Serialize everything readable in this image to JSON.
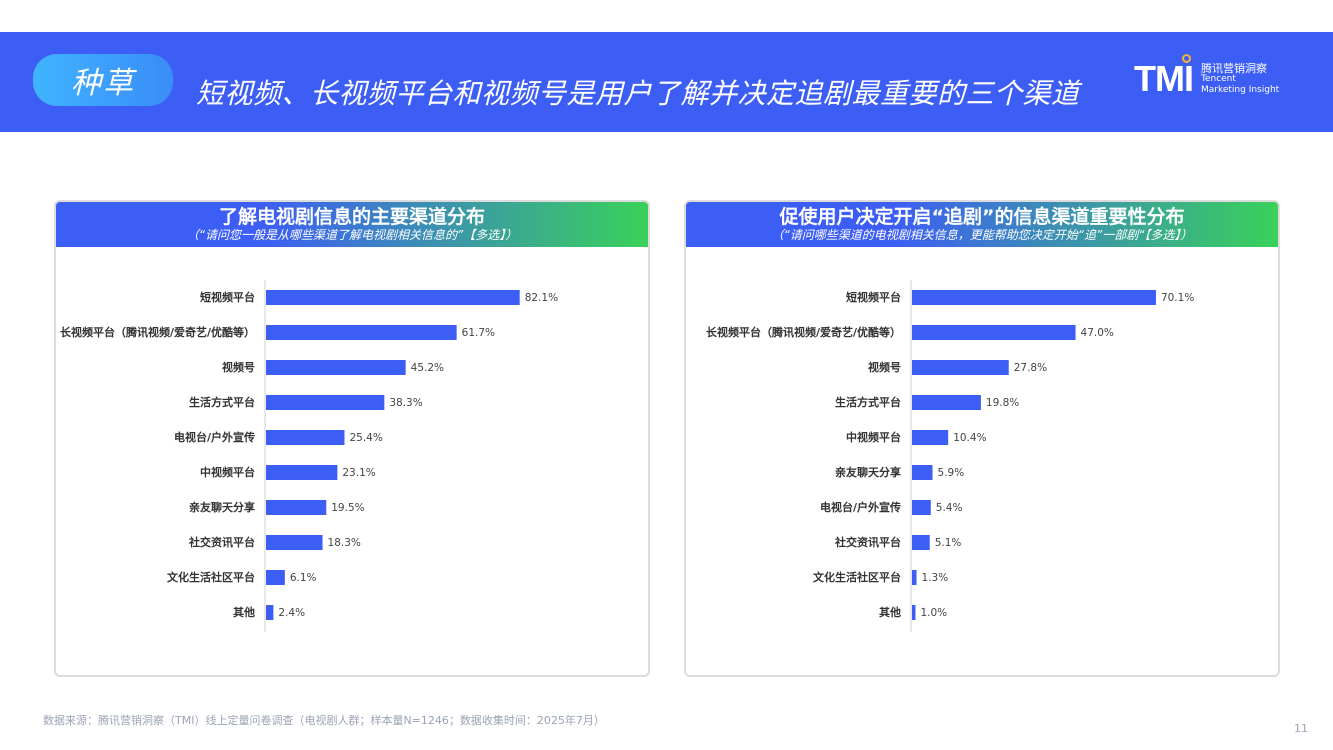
{
  "header": {
    "tag": "种草",
    "title": "短视频、长视频平台和视频号是用户了解并决定追剧最重要的三个渠道",
    "logo": {
      "mark": "TMI",
      "cn": "腾讯营销洞察",
      "en1": "Tencent",
      "en2": "Marketing Insight"
    }
  },
  "colors": {
    "banner": "#3d5ef5",
    "bar": "#3d5ef5",
    "header_gradient_end": "#3ad15a"
  },
  "chart_data": [
    {
      "type": "bar",
      "orientation": "horizontal",
      "title": "了解电视剧信息的主要渠道分布",
      "subtitle": "（“请问您一般是从哪些渠道了解电视剧相关信息的”【多选】）",
      "categories": [
        "短视频平台",
        "长视频平台（腾讯视频/爱奇艺/优酷等）",
        "视频号",
        "生活方式平台",
        "电视台/户外宣传",
        "中视频平台",
        "亲友聊天分享",
        "社交资讯平台",
        "文化生活社区平台",
        "其他"
      ],
      "values": [
        82.1,
        61.7,
        45.2,
        38.3,
        25.4,
        23.1,
        19.5,
        18.3,
        6.1,
        2.4
      ],
      "labels": [
        "82.1%",
        "61.7%",
        "45.2%",
        "38.3%",
        "25.4%",
        "23.1%",
        "19.5%",
        "18.3%",
        "6.1%",
        "2.4%"
      ],
      "xlim": [
        0,
        100
      ],
      "grid": false
    },
    {
      "type": "bar",
      "orientation": "horizontal",
      "title": "促使用户决定开启“追剧”的信息渠道重要性分布",
      "subtitle": "（“请问哪些渠道的电视剧相关信息，更能帮助您决定开始“追”一部剧“【多选】）",
      "categories": [
        "短视频平台",
        "长视频平台（腾讯视频/爱奇艺/优酷等）",
        "视频号",
        "生活方式平台",
        "中视频平台",
        "亲友聊天分享",
        "电视台/户外宣传",
        "社交资讯平台",
        "文化生活社区平台",
        "其他"
      ],
      "values": [
        70.1,
        47.0,
        27.8,
        19.8,
        10.4,
        5.9,
        5.4,
        5.1,
        1.3,
        1.0
      ],
      "labels": [
        "70.1%",
        "47.0%",
        "27.8%",
        "19.8%",
        "10.4%",
        "5.9%",
        "5.4%",
        "5.1%",
        "1.3%",
        "1.0%"
      ],
      "xlim": [
        0,
        100
      ],
      "grid": false
    }
  ],
  "footer": {
    "source": "数据来源：腾讯营销洞察（TMI）线上定量问卷调查（电视剧人群；样本量N=1246；数据收集时间：2025年7月）",
    "page": "11"
  }
}
